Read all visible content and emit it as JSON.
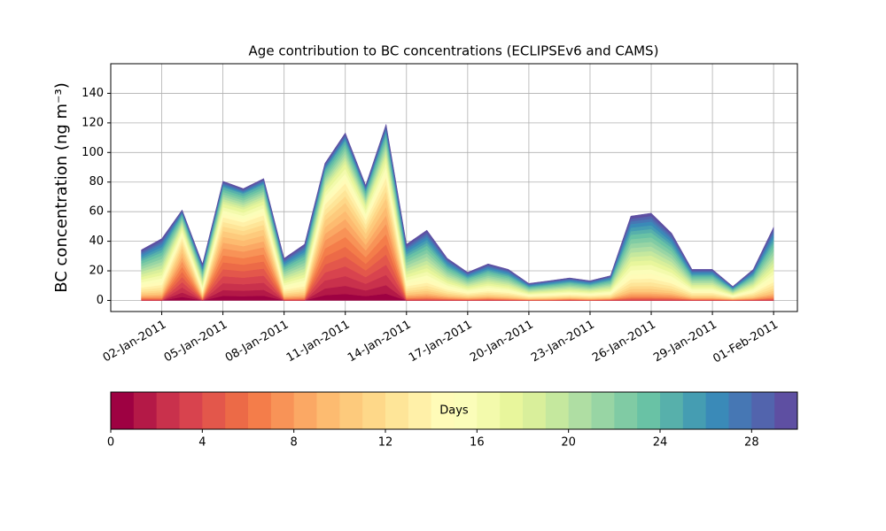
{
  "chart_data": {
    "type": "stacked-area",
    "title": "Age contribution to BC concentrations (ECLIPSEv6 and CAMS)",
    "y_label": "BC concentration (ng m⁻³)",
    "x": [
      "2011-01-01",
      "2011-01-02",
      "2011-01-03",
      "2011-01-04",
      "2011-01-05",
      "2011-01-06",
      "2011-01-07",
      "2011-01-08",
      "2011-01-09",
      "2011-01-10",
      "2011-01-11",
      "2011-01-12",
      "2011-01-13",
      "2011-01-14",
      "2011-01-15",
      "2011-01-16",
      "2011-01-17",
      "2011-01-18",
      "2011-01-19",
      "2011-01-20",
      "2011-01-21",
      "2011-01-22",
      "2011-01-23",
      "2011-01-24",
      "2011-01-25",
      "2011-01-26",
      "2011-01-27",
      "2011-01-28",
      "2011-01-29",
      "2011-01-30",
      "2011-01-31",
      "2011-02-01"
    ],
    "xlim": [
      "2010-12-30T12:00",
      "2011-02-02T04:00"
    ],
    "xticks": [
      {
        "value": "2011-01-02",
        "label": "02-Jan-2011"
      },
      {
        "value": "2011-01-05",
        "label": "05-Jan-2011"
      },
      {
        "value": "2011-01-08",
        "label": "08-Jan-2011"
      },
      {
        "value": "2011-01-11",
        "label": "11-Jan-2011"
      },
      {
        "value": "2011-01-14",
        "label": "14-Jan-2011"
      },
      {
        "value": "2011-01-17",
        "label": "17-Jan-2011"
      },
      {
        "value": "2011-01-20",
        "label": "20-Jan-2011"
      },
      {
        "value": "2011-01-23",
        "label": "23-Jan-2011"
      },
      {
        "value": "2011-01-26",
        "label": "26-Jan-2011"
      },
      {
        "value": "2011-01-29",
        "label": "29-Jan-2011"
      },
      {
        "value": "2011-02-01",
        "label": "01-Feb-2011"
      }
    ],
    "ylim": [
      -7.5,
      160
    ],
    "yticks": [
      0,
      20,
      40,
      60,
      80,
      100,
      120,
      140
    ],
    "grid": true,
    "series": [
      {
        "color": "#9e0142",
        "values": [
          0,
          0,
          2.4,
          0,
          3.1,
          2.9,
          3.2,
          0,
          0,
          3.6,
          4.4,
          3,
          4.6,
          0,
          0,
          0,
          0,
          0,
          0,
          0,
          0,
          0,
          0,
          0,
          0,
          0,
          0,
          0,
          0,
          0,
          0,
          0
        ]
      },
      {
        "color": "#b41947",
        "values": [
          0,
          0,
          3,
          0,
          3.9,
          3.7,
          4,
          0,
          0,
          4.5,
          5.5,
          3.8,
          5.8,
          0,
          0,
          0,
          0,
          0,
          0,
          0,
          0,
          0,
          0,
          0,
          0,
          0,
          0,
          0,
          0,
          0,
          0,
          0
        ]
      },
      {
        "color": "#c9314c",
        "values": [
          0,
          0,
          3.5,
          0,
          4.7,
          4.4,
          4.8,
          0,
          0,
          5.4,
          6.6,
          4.5,
          6.9,
          0,
          0,
          0,
          0,
          0,
          0,
          0,
          0,
          0,
          0,
          0,
          0,
          0,
          0,
          0,
          0,
          0,
          0,
          0
        ]
      },
      {
        "color": "#d8434e",
        "values": [
          0.4,
          0.4,
          3.5,
          0.3,
          4.7,
          4.4,
          4.8,
          0.3,
          0.4,
          5.4,
          6.6,
          4.5,
          6.9,
          0.4,
          0.5,
          0.3,
          0.2,
          0.3,
          0.2,
          0.1,
          0.1,
          0.2,
          0.1,
          0.2,
          0.6,
          0.6,
          0.5,
          0.2,
          0.2,
          0.1,
          0.2,
          0.5
        ]
      },
      {
        "color": "#e3574b",
        "values": [
          0.4,
          0.4,
          3.5,
          0.3,
          4.7,
          4.4,
          4.8,
          0.3,
          0.4,
          5.4,
          6.6,
          4.5,
          6.9,
          0.4,
          0.5,
          0.3,
          0.2,
          0.3,
          0.2,
          0.1,
          0.1,
          0.2,
          0.1,
          0.2,
          0.6,
          0.6,
          0.5,
          0.2,
          0.2,
          0.1,
          0.2,
          0.5
        ]
      },
      {
        "color": "#ec6a47",
        "values": [
          0.4,
          0.4,
          3.5,
          0.3,
          4.7,
          4.4,
          4.8,
          0.3,
          0.4,
          5.4,
          6.6,
          4.5,
          6.9,
          0.4,
          0.5,
          0.3,
          0.2,
          0.3,
          0.2,
          0.1,
          0.1,
          0.2,
          0.1,
          0.2,
          0.6,
          0.6,
          0.5,
          0.2,
          0.2,
          0.1,
          0.2,
          0.5
        ]
      },
      {
        "color": "#f47d4a",
        "values": [
          0.4,
          0.4,
          3.5,
          0.3,
          4.7,
          4.4,
          4.8,
          0.3,
          0.4,
          5.4,
          6.6,
          4.5,
          6.9,
          0.4,
          0.5,
          0.3,
          0.2,
          0.3,
          0.2,
          0.1,
          0.1,
          0.2,
          0.1,
          0.2,
          0.6,
          0.6,
          0.5,
          0.2,
          0.2,
          0.1,
          0.2,
          0.5
        ]
      },
      {
        "color": "#f89357",
        "values": [
          0.7,
          0.9,
          3.5,
          0.5,
          4.7,
          4.4,
          4.8,
          0.6,
          0.8,
          5.4,
          6.6,
          4.5,
          6.9,
          0.8,
          1,
          0.6,
          0.4,
          0.5,
          0.4,
          0.2,
          0.3,
          0.3,
          0.3,
          0.3,
          1.2,
          1.2,
          1,
          0.4,
          0.4,
          0.2,
          0.4,
          1
        ]
      },
      {
        "color": "#fba864",
        "values": [
          0.7,
          0.9,
          3,
          0.5,
          3.9,
          3.7,
          4,
          0.6,
          0.8,
          4.5,
          5.5,
          3.8,
          5.8,
          0.8,
          1,
          0.6,
          0.4,
          0.5,
          0.4,
          0.2,
          0.3,
          0.3,
          0.3,
          0.3,
          1.2,
          1.2,
          1,
          0.4,
          0.4,
          0.2,
          0.4,
          1
        ]
      },
      {
        "color": "#fdbb70",
        "values": [
          0.7,
          0.9,
          3,
          0.5,
          3.9,
          3.7,
          4,
          0.6,
          0.8,
          4.5,
          5.5,
          3.8,
          5.8,
          0.8,
          1,
          0.6,
          0.4,
          0.5,
          0.4,
          0.2,
          0.3,
          0.3,
          0.3,
          0.3,
          1.2,
          1.2,
          1,
          0.4,
          0.4,
          0.2,
          0.4,
          1
        ]
      },
      {
        "color": "#fdca7c",
        "values": [
          1.1,
          1.3,
          3,
          0.8,
          3.9,
          3.7,
          4,
          0.9,
          1.2,
          4.5,
          5.5,
          3.8,
          5.8,
          1.2,
          1.5,
          0.9,
          0.6,
          0.8,
          0.7,
          0.4,
          0.4,
          0.5,
          0.4,
          0.5,
          1.8,
          1.9,
          1.4,
          0.7,
          0.7,
          0.3,
          0.7,
          1.6
        ]
      },
      {
        "color": "#fed889",
        "values": [
          1.1,
          1.3,
          2.4,
          0.8,
          3.1,
          2.9,
          3.2,
          0.9,
          1.2,
          3.6,
          4.4,
          3,
          4.6,
          1.2,
          1.5,
          0.9,
          0.6,
          0.8,
          0.7,
          0.4,
          0.4,
          0.5,
          0.4,
          0.5,
          1.8,
          1.9,
          1.4,
          0.7,
          0.7,
          0.3,
          0.7,
          1.6
        ]
      },
      {
        "color": "#fee598",
        "values": [
          1.4,
          1.8,
          2.4,
          1,
          3.1,
          2.9,
          3.2,
          1.2,
          1.6,
          3.6,
          4.4,
          3,
          4.6,
          1.6,
          2,
          1.2,
          0.8,
          1,
          0.9,
          0.5,
          0.6,
          0.6,
          0.6,
          0.7,
          2.4,
          2.5,
          1.9,
          0.9,
          0.9,
          0.4,
          0.9,
          2.1
        ]
      },
      {
        "color": "#fff0a8",
        "values": [
          1.4,
          1.8,
          2.4,
          1,
          3.1,
          2.9,
          3.2,
          1.2,
          1.6,
          3.6,
          4.4,
          3,
          4.6,
          1.6,
          2,
          1.2,
          0.8,
          1,
          0.9,
          0.5,
          0.6,
          0.6,
          0.6,
          0.7,
          2.4,
          2.5,
          1.9,
          0.9,
          0.9,
          0.4,
          0.9,
          2.1
        ]
      },
      {
        "color": "#fffbb8",
        "values": [
          1.8,
          2.2,
          1.8,
          1.3,
          2.3,
          2.2,
          2.4,
          1.5,
          2,
          2.7,
          3.3,
          2.3,
          3.5,
          2,
          2.5,
          1.5,
          1,
          1.3,
          1.1,
          0.6,
          0.7,
          0.8,
          0.7,
          0.9,
          3,
          3.1,
          2.4,
          1.1,
          1.1,
          0.5,
          1.1,
          2.6
        ]
      },
      {
        "color": "#fbfdb9",
        "values": [
          1.8,
          2.2,
          1.8,
          1.3,
          2.3,
          2.2,
          2.4,
          1.5,
          2,
          2.7,
          3.3,
          2.3,
          3.5,
          2,
          2.5,
          1.5,
          1,
          1.3,
          1.1,
          0.6,
          0.7,
          0.8,
          0.7,
          0.9,
          3,
          3.1,
          2.4,
          1.1,
          1.1,
          0.5,
          1.1,
          2.6
        ]
      },
      {
        "color": "#f3faac",
        "values": [
          1.8,
          2.2,
          1.8,
          1.3,
          2.3,
          2.2,
          2.4,
          1.5,
          2,
          2.7,
          3.3,
          2.3,
          3.5,
          2,
          2.5,
          1.5,
          1,
          1.3,
          1.1,
          0.6,
          0.7,
          0.8,
          0.7,
          0.9,
          3,
          3.1,
          2.4,
          1.1,
          1.1,
          0.5,
          1.1,
          2.6
        ]
      },
      {
        "color": "#e8f69c",
        "values": [
          1.8,
          2.2,
          1.8,
          1.3,
          2.3,
          2.2,
          2.4,
          1.5,
          2,
          2.7,
          3.3,
          2.3,
          3.5,
          2,
          2.5,
          1.5,
          1,
          1.3,
          1.1,
          0.6,
          0.7,
          0.8,
          0.7,
          0.9,
          3,
          3.1,
          2.4,
          1.1,
          1.1,
          0.5,
          1.1,
          2.6
        ]
      },
      {
        "color": "#d9ef9b",
        "values": [
          1.8,
          2.2,
          1.2,
          1.3,
          1.6,
          1.5,
          1.6,
          1.5,
          2,
          1.8,
          2.2,
          1.5,
          2.3,
          2,
          2.5,
          1.5,
          1,
          1.3,
          1.1,
          0.6,
          0.7,
          0.8,
          0.7,
          0.9,
          3,
          3.1,
          2.4,
          1.1,
          1.1,
          0.5,
          1.1,
          2.6
        ]
      },
      {
        "color": "#c5e89e",
        "values": [
          1.8,
          2.2,
          1.2,
          1.3,
          1.6,
          1.5,
          1.6,
          1.5,
          2,
          1.8,
          2.2,
          1.5,
          2.3,
          2,
          2.5,
          1.5,
          1,
          1.3,
          1.1,
          0.6,
          0.7,
          0.8,
          0.7,
          0.9,
          3,
          3.1,
          2.4,
          1.1,
          1.1,
          0.5,
          1.1,
          2.6
        ]
      },
      {
        "color": "#afdea3",
        "values": [
          1.8,
          2.2,
          1.2,
          1.3,
          1.6,
          1.5,
          1.6,
          1.5,
          2,
          1.8,
          2.2,
          1.5,
          2.3,
          2,
          2.5,
          1.5,
          1,
          1.3,
          1.1,
          0.6,
          0.7,
          0.8,
          0.7,
          0.9,
          3,
          3.1,
          2.4,
          1.1,
          1.1,
          0.5,
          1.1,
          2.6
        ]
      },
      {
        "color": "#98d5a4",
        "values": [
          1.8,
          2.2,
          1.2,
          1.3,
          1.6,
          1.5,
          1.6,
          1.5,
          2,
          1.8,
          2.2,
          1.5,
          2.3,
          2,
          2.5,
          1.5,
          1,
          1.3,
          1.1,
          0.6,
          0.7,
          0.8,
          0.7,
          0.9,
          3,
          3.1,
          2.4,
          1.1,
          1.1,
          0.5,
          1.1,
          2.6
        ]
      },
      {
        "color": "#80cba4",
        "values": [
          1.8,
          2.2,
          1.2,
          1.3,
          1.6,
          1.5,
          1.6,
          1.5,
          2,
          1.8,
          2.2,
          1.5,
          2.3,
          2,
          2.5,
          1.5,
          1,
          1.3,
          1.1,
          0.6,
          0.7,
          0.8,
          0.7,
          0.9,
          3,
          3.1,
          2.4,
          1.1,
          1.1,
          0.5,
          1.1,
          2.6
        ]
      },
      {
        "color": "#69c2a5",
        "values": [
          1.8,
          2.2,
          1.2,
          1.3,
          1.6,
          1.5,
          1.6,
          1.5,
          2,
          1.8,
          2.2,
          1.5,
          2.3,
          2,
          2.5,
          1.5,
          1,
          1.3,
          1.1,
          0.6,
          0.7,
          0.8,
          0.7,
          0.9,
          3,
          3.1,
          2.4,
          1.1,
          1.1,
          0.5,
          1.1,
          2.6
        ]
      },
      {
        "color": "#57b0ab",
        "values": [
          1.4,
          1.8,
          1.2,
          1,
          1.6,
          1.5,
          1.6,
          1.2,
          1.6,
          1.8,
          2.2,
          1.5,
          2.3,
          1.6,
          2,
          1.2,
          0.8,
          1,
          0.9,
          0.5,
          0.6,
          0.6,
          0.6,
          0.7,
          2.4,
          2.5,
          1.9,
          0.9,
          0.9,
          0.4,
          0.9,
          2.1
        ]
      },
      {
        "color": "#459db2",
        "values": [
          1.4,
          1.8,
          0.6,
          1,
          0.8,
          0.7,
          0.8,
          1.2,
          1.6,
          0.9,
          1.1,
          0.8,
          1.2,
          1.6,
          2,
          1.2,
          0.8,
          1,
          0.9,
          0.5,
          0.6,
          0.6,
          0.6,
          0.7,
          2.4,
          2.5,
          1.9,
          0.9,
          0.9,
          0.4,
          0.9,
          2.1
        ]
      },
      {
        "color": "#3a8ab8",
        "values": [
          1.4,
          1.8,
          0.6,
          1,
          0.8,
          0.7,
          0.8,
          1.2,
          1.6,
          0.9,
          1.1,
          0.8,
          1.2,
          1.6,
          2,
          1.2,
          0.8,
          1,
          0.9,
          0.5,
          0.6,
          0.6,
          0.6,
          0.7,
          2.4,
          2.5,
          1.9,
          0.9,
          0.9,
          0.4,
          0.9,
          2.1
        ]
      },
      {
        "color": "#4677b4",
        "values": [
          1.1,
          1.3,
          0.6,
          0.8,
          0.8,
          0.7,
          0.8,
          0.9,
          1.2,
          0.9,
          1.1,
          0.8,
          1.2,
          1.2,
          1.5,
          0.9,
          0.6,
          0.8,
          0.7,
          0.4,
          0.4,
          0.5,
          0.4,
          0.5,
          1.8,
          1.9,
          1.4,
          0.7,
          0.7,
          0.3,
          0.7,
          1.6
        ]
      },
      {
        "color": "#5264ad",
        "values": [
          1.1,
          1.3,
          0.6,
          0.8,
          0.8,
          0.7,
          0.8,
          0.9,
          1.2,
          0.9,
          1.1,
          0.8,
          1.2,
          1.2,
          1.5,
          0.9,
          0.6,
          0.8,
          0.7,
          0.4,
          0.4,
          0.5,
          0.4,
          0.5,
          1.8,
          1.9,
          1.4,
          0.7,
          0.7,
          0.3,
          0.7,
          1.6
        ]
      },
      {
        "color": "#5e4fa2",
        "values": [
          1.1,
          1.3,
          0.6,
          0.8,
          0.8,
          0.7,
          0.8,
          0.9,
          1.2,
          0.9,
          1.1,
          0.8,
          1.2,
          1.2,
          1.5,
          0.9,
          0.6,
          0.8,
          0.7,
          0.4,
          0.4,
          0.5,
          0.4,
          0.5,
          1.8,
          1.9,
          1.4,
          0.7,
          0.7,
          0.3,
          0.7,
          1.6
        ]
      }
    ],
    "colorbar": {
      "label": "Days",
      "lim": [
        0,
        30
      ],
      "ticks": [
        0,
        4,
        8,
        12,
        16,
        20,
        24,
        28
      ]
    }
  }
}
